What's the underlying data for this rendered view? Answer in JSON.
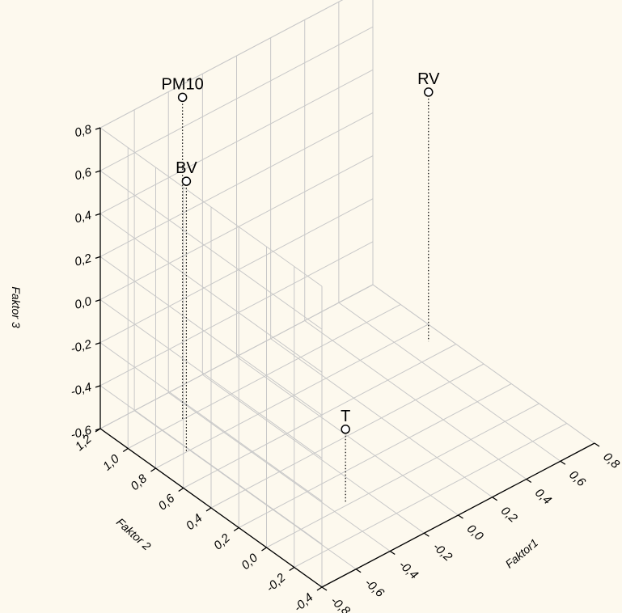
{
  "chart_data": {
    "type": "scatter",
    "projection": "3d",
    "grid": true,
    "xlabel": "Faktor1",
    "ylabel": "Faktor 2",
    "zlabel": "Faktor 3",
    "xlim": [
      -0.8,
      0.8
    ],
    "ylim": [
      -0.4,
      1.2
    ],
    "zlim": [
      -0.6,
      0.8
    ],
    "x_ticks": [
      "-0,8",
      "-0,6",
      "-0,4",
      "-0,2",
      "0,0",
      "0,2",
      "0,4",
      "0,6",
      "0,8"
    ],
    "y_ticks": [
      "-0,4",
      "-0,2",
      "0,0",
      "0,2",
      "0,4",
      "0,6",
      "0,8",
      "1,0",
      "1,2"
    ],
    "z_ticks": [
      "-0,6",
      "-0,4",
      "-0,2",
      "0,0",
      "0,2",
      "0,4",
      "0,6",
      "0,8"
    ],
    "points": [
      {
        "label": "PM10",
        "x": -0.48,
        "y": 1.0,
        "z": 0.9
      },
      {
        "label": "BV",
        "x": -0.62,
        "y": 0.8,
        "z": 0.66
      },
      {
        "label": "T",
        "x": -0.32,
        "y": 0.02,
        "z": -0.26
      },
      {
        "label": "RV",
        "x": 0.72,
        "y": 0.7,
        "z": 0.56
      }
    ]
  }
}
